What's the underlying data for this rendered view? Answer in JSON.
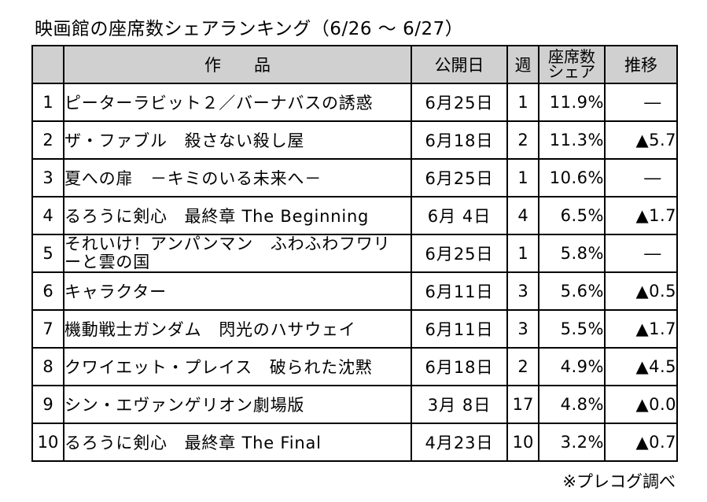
{
  "title": "映画館の座席数シェアランキング（6/26 ～ 6/27）",
  "table": {
    "headers": {
      "rank": "",
      "title": "作　　品",
      "release": "公開日",
      "week": "週",
      "share_line1": "座席数",
      "share_line2": "シェア",
      "trend": "推移"
    },
    "rows": [
      {
        "rank": "1",
        "title": "ピーターラビット２／バーナバスの誘惑",
        "release": "6月25日",
        "week": "1",
        "share": "11.9%",
        "trend": "―"
      },
      {
        "rank": "2",
        "title": "ザ・ファブル　殺さない殺し屋",
        "release": "6月18日",
        "week": "2",
        "share": "11.3%",
        "trend": "▲5.7"
      },
      {
        "rank": "3",
        "title": "夏への扉　－キミのいる未来へ－",
        "release": "6月25日",
        "week": "1",
        "share": "10.6%",
        "trend": "―"
      },
      {
        "rank": "4",
        "title": "るろうに剣心　最終章 The Beginning",
        "release": "6月 4日",
        "week": "4",
        "share": "6.5%",
        "trend": "▲1.7"
      },
      {
        "rank": "5",
        "title": "それいけ！アンパンマン　ふわふわフワリーと雲の国",
        "release": "6月25日",
        "week": "1",
        "share": "5.8%",
        "trend": "―"
      },
      {
        "rank": "6",
        "title": "キャラクター",
        "release": "6月11日",
        "week": "3",
        "share": "5.6%",
        "trend": "▲0.5"
      },
      {
        "rank": "7",
        "title": "機動戦士ガンダム　閃光のハサウェイ",
        "release": "6月11日",
        "week": "3",
        "share": "5.5%",
        "trend": "▲1.7"
      },
      {
        "rank": "8",
        "title": "クワイエット・プレイス　破られた沈黙",
        "release": "6月18日",
        "week": "2",
        "share": "4.9%",
        "trend": "▲4.5"
      },
      {
        "rank": "9",
        "title": "シン・エヴァンゲリオン劇場版",
        "release": "3月 8日",
        "week": "17",
        "share": "4.8%",
        "trend": "▲0.0"
      },
      {
        "rank": "10",
        "title": "るろうに剣心　最終章 The Final",
        "release": "4月23日",
        "week": "10",
        "share": "3.2%",
        "trend": "▲0.7"
      }
    ]
  },
  "footnote": "※プレコグ調べ"
}
